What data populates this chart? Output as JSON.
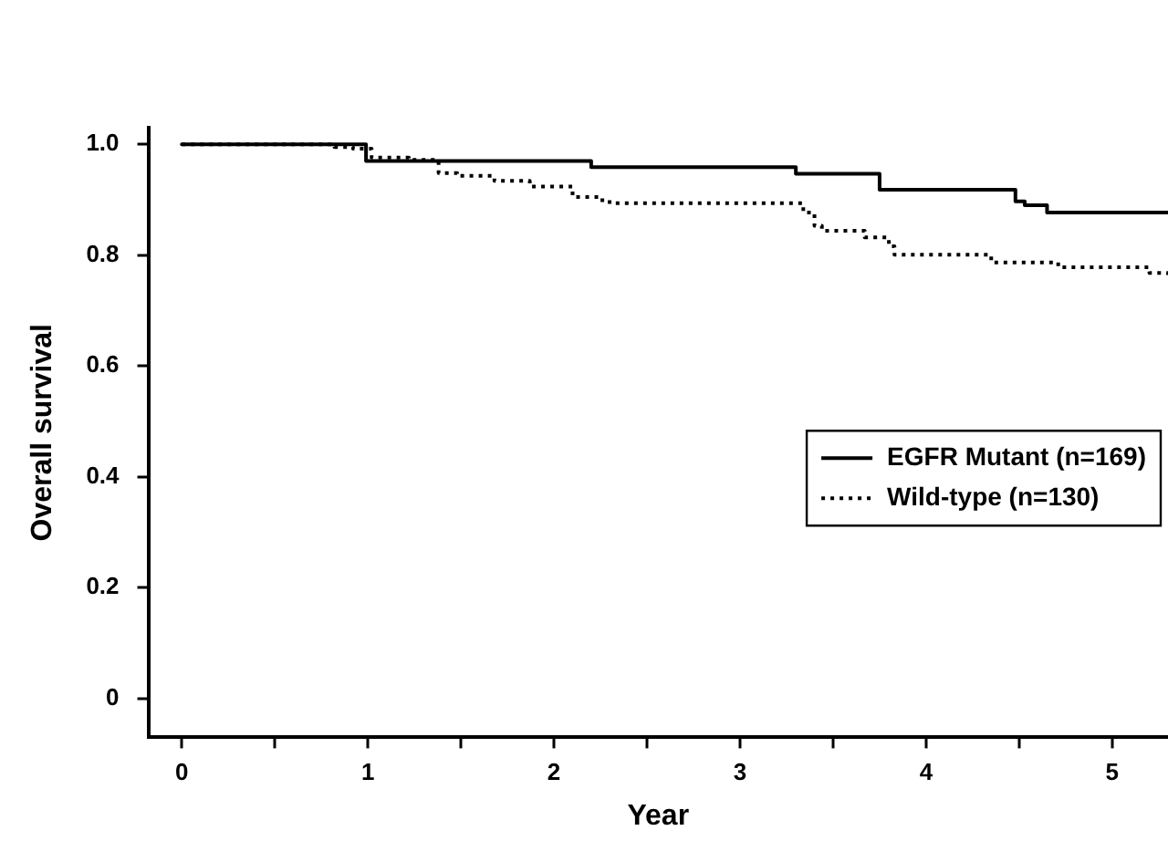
{
  "chart_data": {
    "type": "step",
    "xlabel": "Year",
    "ylabel": "Overall survival",
    "xlim": [
      -0.18,
      5.3
    ],
    "ylim": [
      -0.07,
      1.03
    ],
    "xticks": [
      0,
      {
        "value": 0.5,
        "label": null
      },
      1,
      {
        "value": 1.5,
        "label": null
      },
      2,
      {
        "value": 2.5,
        "label": null
      },
      3,
      {
        "value": 3.5,
        "label": null
      },
      4,
      {
        "value": 4.5,
        "label": null
      },
      5
    ],
    "yticks": [
      0,
      0.2,
      0.4,
      0.6,
      0.8,
      {
        "value": 1,
        "label": "1.0"
      }
    ],
    "grid": false,
    "legend": "right",
    "series": [
      {
        "name": "EGFR Mutant (n=169)",
        "color": "#000000",
        "line_style": "solid",
        "x": [
          0,
          0.99,
          2.2,
          3.3,
          3.75,
          4.48,
          4.53,
          4.65,
          5.3
        ],
        "values": [
          1,
          0.97,
          0.959,
          0.947,
          0.918,
          0.897,
          0.89,
          0.877,
          0.877
        ]
      },
      {
        "name": "Wild-type (n=130)",
        "color": "#000000",
        "line_style": "dotted",
        "x": [
          0,
          0.82,
          0.92,
          1.02,
          1.22,
          1.38,
          1.48,
          1.68,
          1.87,
          2.1,
          2.26,
          2.32,
          3.34,
          3.4,
          3.44,
          3.67,
          3.8,
          3.83,
          4.35,
          4.71,
          5.2,
          5.3
        ],
        "values": [
          1,
          0.995,
          0.992,
          0.976,
          0.972,
          0.948,
          0.943,
          0.934,
          0.924,
          0.905,
          0.896,
          0.894,
          0.877,
          0.853,
          0.844,
          0.832,
          0.816,
          0.801,
          0.787,
          0.778,
          0.768,
          0.761
        ]
      }
    ]
  }
}
